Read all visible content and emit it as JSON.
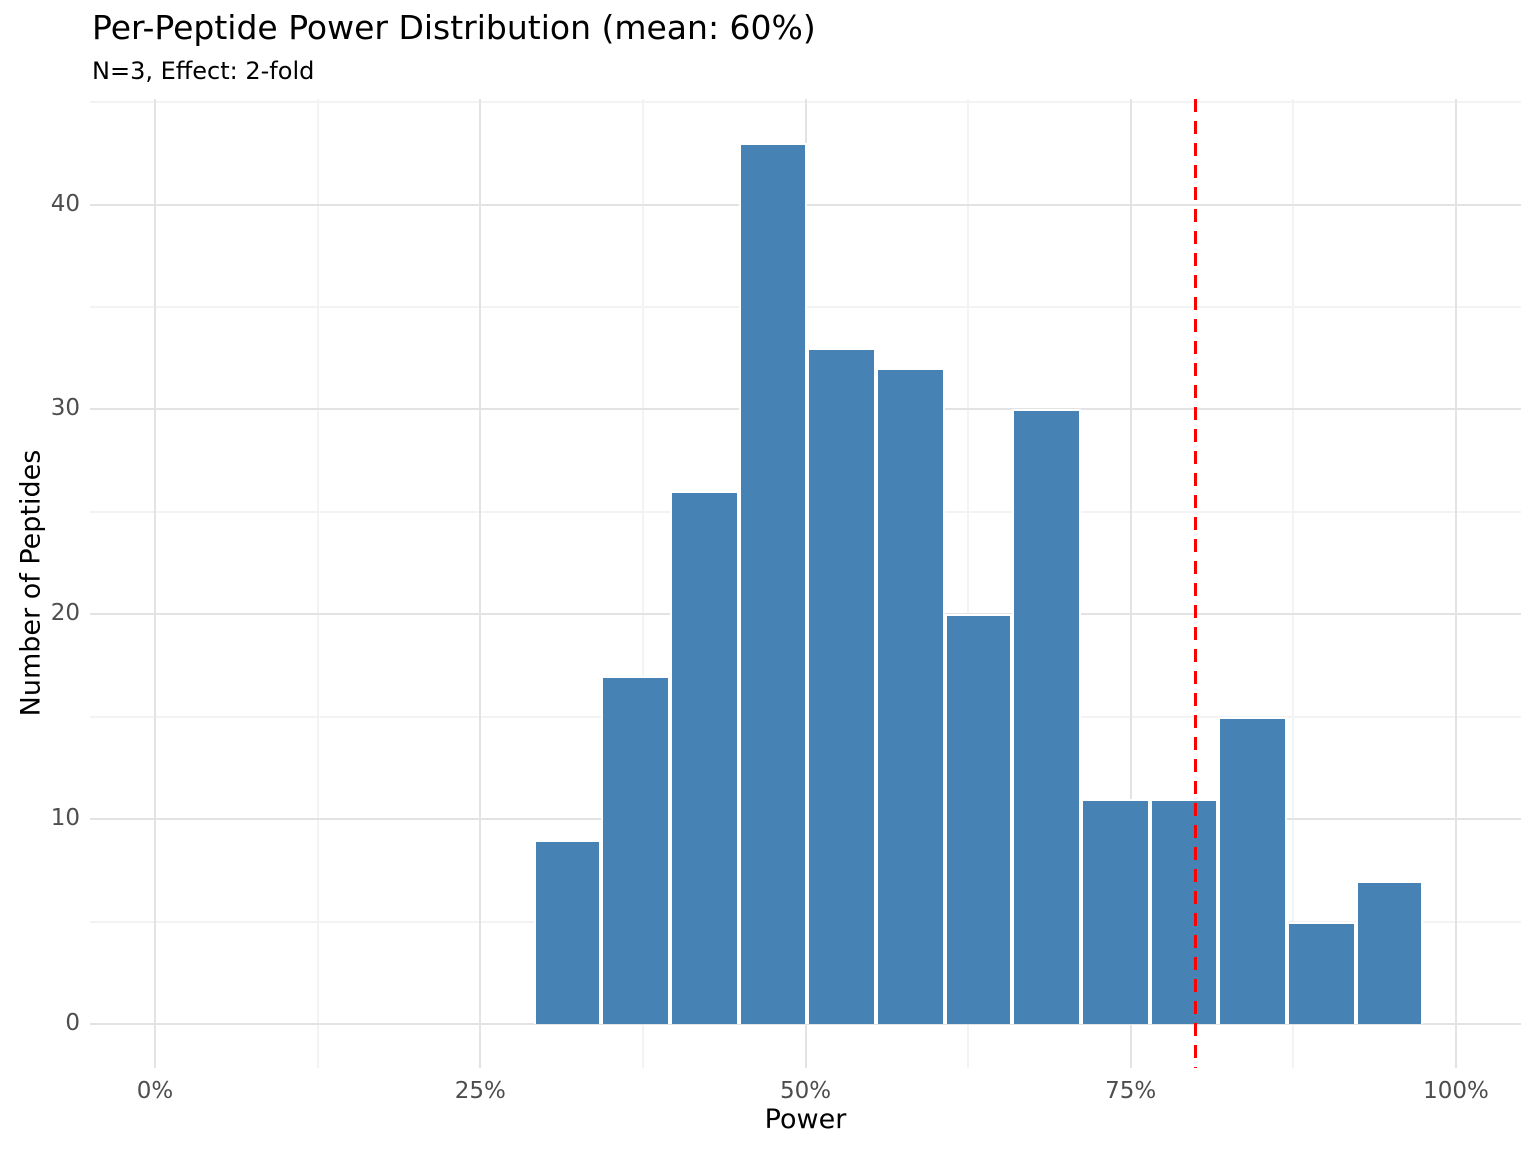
{
  "chart_data": {
    "type": "bar",
    "subtype": "histogram",
    "title": "Per-Peptide Power Distribution (mean: 60%)",
    "subtitle": "N=3, Effect: 2-fold",
    "xlabel": "Power",
    "ylabel": "Number of Peptides",
    "bin_edges_percent": [
      29.1,
      34.3,
      39.6,
      44.9,
      50.1,
      55.4,
      60.7,
      65.9,
      71.2,
      76.5,
      81.7,
      87.0,
      92.3,
      97.5
    ],
    "counts": [
      9,
      17,
      26,
      43,
      33,
      32,
      20,
      30,
      11,
      11,
      15,
      5,
      7
    ],
    "threshold_line": {
      "x_percent": 80,
      "color": "#ff0000",
      "style": "dashed"
    },
    "xlim": [
      -5,
      105
    ],
    "ylim": [
      -2.15,
      45.15
    ],
    "x_ticks": [
      {
        "value": 0,
        "label": "0%"
      },
      {
        "value": 25,
        "label": "25%"
      },
      {
        "value": 50,
        "label": "50%"
      },
      {
        "value": 75,
        "label": "75%"
      },
      {
        "value": 100,
        "label": "100%"
      }
    ],
    "y_ticks": [
      {
        "value": 0,
        "label": "0"
      },
      {
        "value": 10,
        "label": "10"
      },
      {
        "value": 20,
        "label": "20"
      },
      {
        "value": 30,
        "label": "30"
      },
      {
        "value": 40,
        "label": "40"
      }
    ],
    "x_minor_ticks": [
      12.5,
      37.5,
      62.5,
      87.5
    ],
    "y_minor_ticks": [
      5,
      15,
      25,
      35,
      45
    ],
    "grid": true,
    "legend_position": "none",
    "colors": {
      "bar_fill": "#4682b4",
      "bar_edge": "#ffffff",
      "grid_major": "#e3e3e3",
      "grid_minor": "#f3f3f3",
      "tick_label": "#4d4d4d",
      "text": "#000000",
      "threshold": "#ff0000"
    }
  }
}
